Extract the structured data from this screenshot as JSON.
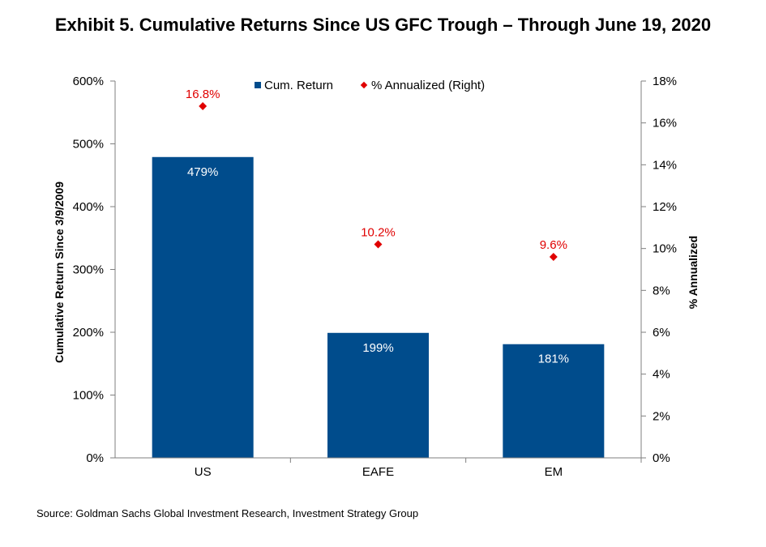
{
  "title": "Exhibit 5. Cumulative Returns Since US GFC Trough – Through June 19, 2020",
  "source": "Source: Goldman Sachs Global Investment Research, Investment Strategy Group",
  "colors": {
    "bar": "#004c8c",
    "marker": "#e00000",
    "axis": "#7f7f7f"
  },
  "chart_data": {
    "type": "bar",
    "categories": [
      "US",
      "EAFE",
      "EM"
    ],
    "series": [
      {
        "name": "Cum. Return",
        "type": "bar",
        "axis": "left",
        "values": [
          479,
          199,
          181
        ],
        "labels": [
          "479%",
          "199%",
          "181%"
        ]
      },
      {
        "name": "% Annualized (Right)",
        "type": "scatter",
        "axis": "right",
        "values": [
          16.8,
          10.2,
          9.6
        ],
        "labels": [
          "16.8%",
          "10.2%",
          "9.6%"
        ]
      }
    ],
    "ylabel": "Cumulative Return Since 3/9/2009",
    "y2label": "% Annualized",
    "ylim": [
      0,
      600
    ],
    "y2lim": [
      0,
      18
    ],
    "yticks": [
      "0%",
      "100%",
      "200%",
      "300%",
      "400%",
      "500%",
      "600%"
    ],
    "y2ticks": [
      "0%",
      "2%",
      "4%",
      "6%",
      "8%",
      "10%",
      "12%",
      "14%",
      "16%",
      "18%"
    ],
    "grid": false,
    "legend": "top-center"
  }
}
